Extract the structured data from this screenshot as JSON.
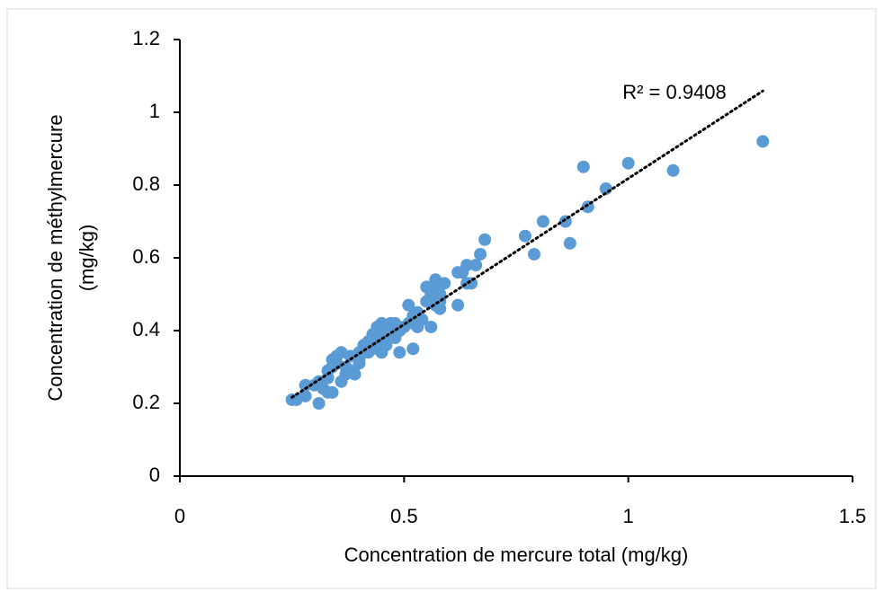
{
  "chart_data": {
    "type": "scatter",
    "xlabel": "Concentration de mercure total (mg/kg)",
    "ylabel": [
      "Concentration de méthylmercure",
      "(mg/kg)"
    ],
    "annotation": "R² = 0.9408",
    "color": "#5b9bd5",
    "trendline": true,
    "xlim": [
      0,
      1.5
    ],
    "xticks": [
      0,
      0.5,
      1,
      1.5
    ],
    "ylim": [
      0,
      1.2
    ],
    "yticks": [
      0,
      0.2,
      0.4,
      0.6,
      0.8,
      1,
      1.2
    ],
    "x": [
      0.25,
      0.26,
      0.28,
      0.28,
      0.3,
      0.31,
      0.31,
      0.32,
      0.33,
      0.33,
      0.33,
      0.34,
      0.34,
      0.34,
      0.35,
      0.35,
      0.36,
      0.36,
      0.37,
      0.37,
      0.38,
      0.38,
      0.39,
      0.4,
      0.4,
      0.4,
      0.41,
      0.42,
      0.42,
      0.43,
      0.43,
      0.44,
      0.44,
      0.45,
      0.45,
      0.45,
      0.46,
      0.46,
      0.47,
      0.47,
      0.48,
      0.48,
      0.49,
      0.49,
      0.5,
      0.51,
      0.51,
      0.52,
      0.52,
      0.53,
      0.53,
      0.54,
      0.55,
      0.55,
      0.56,
      0.56,
      0.57,
      0.57,
      0.57,
      0.58,
      0.58,
      0.58,
      0.59,
      0.62,
      0.62,
      0.63,
      0.64,
      0.64,
      0.65,
      0.66,
      0.67,
      0.68,
      0.77,
      0.79,
      0.81,
      0.86,
      0.87,
      0.9,
      0.91,
      0.95,
      1.0,
      1.1,
      1.3
    ],
    "values": [
      0.21,
      0.21,
      0.22,
      0.25,
      0.25,
      0.2,
      0.26,
      0.24,
      0.23,
      0.27,
      0.29,
      0.23,
      0.3,
      0.32,
      0.31,
      0.33,
      0.26,
      0.34,
      0.28,
      0.3,
      0.33,
      0.29,
      0.28,
      0.32,
      0.34,
      0.31,
      0.36,
      0.37,
      0.34,
      0.39,
      0.35,
      0.41,
      0.37,
      0.42,
      0.34,
      0.38,
      0.41,
      0.36,
      0.42,
      0.39,
      0.38,
      0.42,
      0.34,
      0.4,
      0.41,
      0.47,
      0.42,
      0.35,
      0.44,
      0.41,
      0.45,
      0.43,
      0.52,
      0.48,
      0.41,
      0.5,
      0.52,
      0.54,
      0.47,
      0.48,
      0.46,
      0.5,
      0.53,
      0.47,
      0.56,
      0.56,
      0.58,
      0.53,
      0.53,
      0.58,
      0.61,
      0.65,
      0.66,
      0.61,
      0.7,
      0.7,
      0.64,
      0.85,
      0.74,
      0.79,
      0.86,
      0.84,
      0.92
    ]
  }
}
